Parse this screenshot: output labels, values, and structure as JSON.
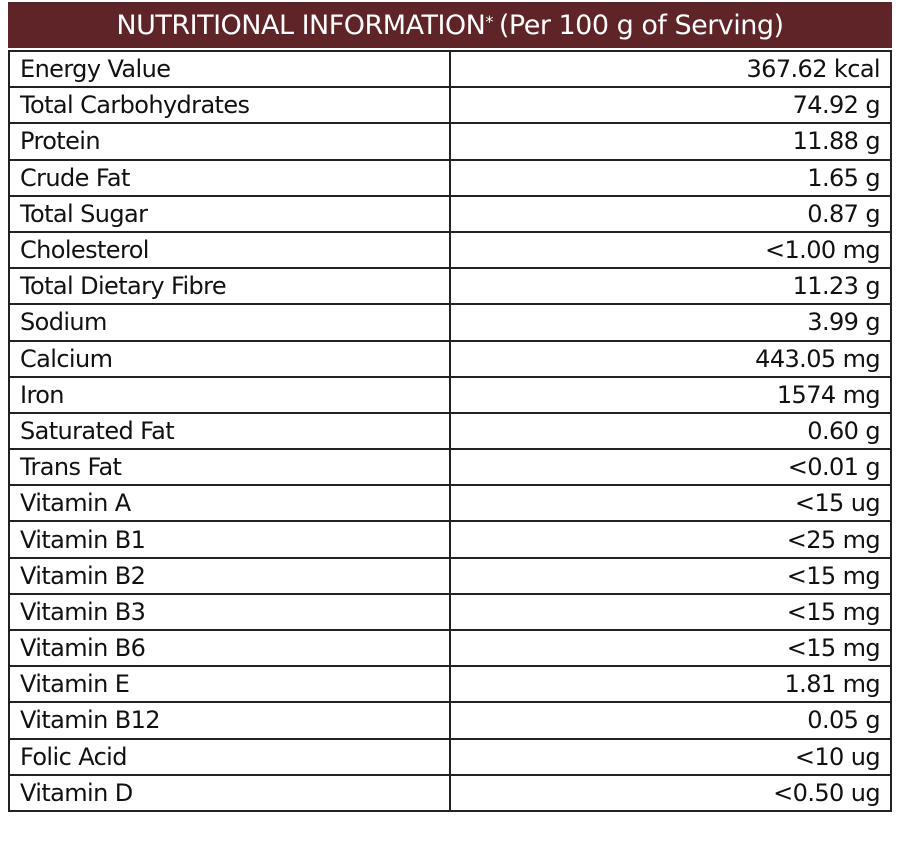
{
  "header": {
    "title": "NUTRITIONAL INFORMATION",
    "title_mark": "*",
    "subtitle": "(Per 100 g of Serving)"
  },
  "table": {
    "rows": [
      [
        "Energy Value",
        "367.62 kcal"
      ],
      [
        "Total Carbohydrates",
        "74.92 g"
      ],
      [
        "Protein",
        "11.88 g"
      ],
      [
        "Crude Fat",
        "1.65 g"
      ],
      [
        "Total Sugar",
        "0.87 g"
      ],
      [
        "Cholesterol",
        "<1.00 mg"
      ],
      [
        "Total Dietary Fibre",
        "11.23 g"
      ],
      [
        "Sodium",
        "3.99 g"
      ],
      [
        "Calcium",
        "443.05 mg"
      ],
      [
        "Iron",
        "1574 mg"
      ],
      [
        "Saturated Fat",
        "0.60 g"
      ],
      [
        "Trans Fat",
        "<0.01 g"
      ],
      [
        "Vitamin A",
        "<15 ug"
      ],
      [
        "Vitamin B1",
        "<25 mg"
      ],
      [
        "Vitamin B2",
        "<15 mg"
      ],
      [
        "Vitamin B3",
        "<15 mg"
      ],
      [
        "Vitamin B6",
        "<15 mg"
      ],
      [
        "Vitamin E",
        "1.81 mg"
      ],
      [
        "Vitamin B12",
        "0.05 g"
      ],
      [
        "Folic Acid",
        "<10 ug"
      ],
      [
        "Vitamin D",
        "<0.50 ug"
      ]
    ]
  }
}
